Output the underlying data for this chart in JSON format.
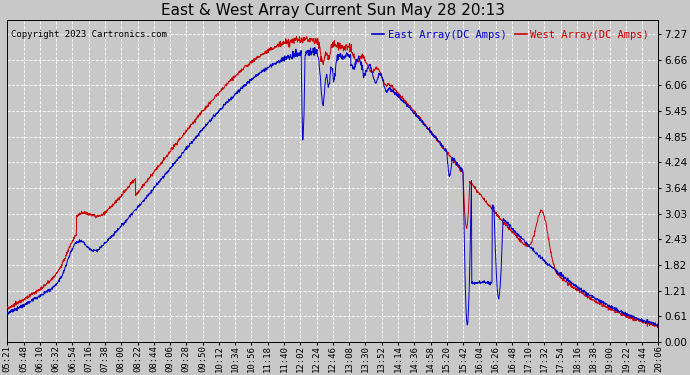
{
  "title": "East & West Array Current Sun May 28 20:13",
  "copyright": "Copyright 2023 Cartronics.com",
  "legend_east": "East Array(DC Amps)",
  "legend_west": "West Array(DC Amps)",
  "east_color": "#0000cc",
  "west_color": "#cc0000",
  "background_color": "#c8c8c8",
  "plot_bg_color": "#c8c8c8",
  "yticks": [
    0.0,
    0.61,
    1.21,
    1.82,
    2.43,
    3.03,
    3.64,
    4.24,
    4.85,
    5.45,
    6.06,
    6.66,
    7.27
  ],
  "ylim": [
    0.0,
    7.6
  ],
  "xtick_labels": [
    "05:21",
    "05:48",
    "06:10",
    "06:32",
    "06:54",
    "07:16",
    "07:38",
    "08:00",
    "08:22",
    "08:44",
    "09:06",
    "09:28",
    "09:50",
    "10:12",
    "10:34",
    "10:56",
    "11:18",
    "11:40",
    "12:02",
    "12:24",
    "12:46",
    "13:08",
    "13:30",
    "13:52",
    "14:14",
    "14:36",
    "14:58",
    "15:20",
    "15:42",
    "16:04",
    "16:26",
    "16:48",
    "17:10",
    "17:32",
    "17:54",
    "18:16",
    "18:38",
    "19:00",
    "19:22",
    "19:44",
    "20:06"
  ],
  "grid_color": "#ffffff",
  "grid_linestyle": "--",
  "title_fontsize": 11,
  "axis_fontsize": 6.5,
  "copyright_fontsize": 6.5,
  "legend_fontsize": 7.5
}
